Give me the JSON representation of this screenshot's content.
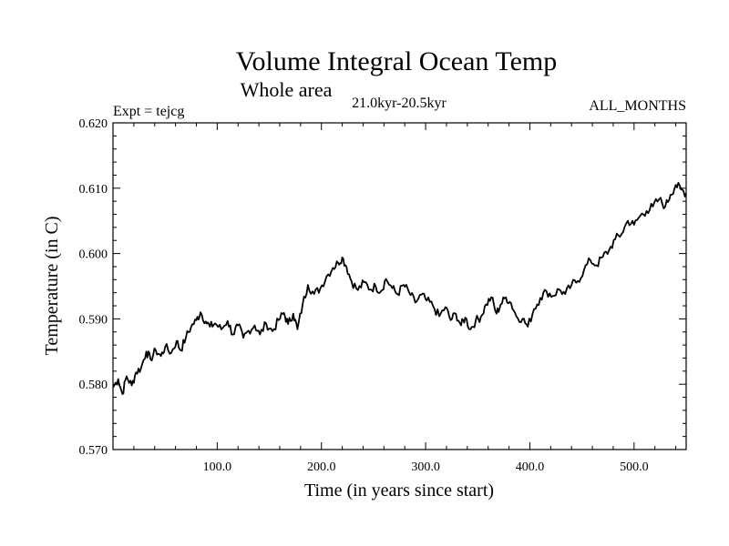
{
  "chart_data": {
    "type": "line",
    "title": "Volume Integral Ocean Temp",
    "subtitle": "Whole area",
    "period": "21.0kyr-20.5kyr",
    "expt": "Expt = tejcg",
    "months": "ALL_MONTHS",
    "xlabel": "Time (in years since start)",
    "ylabel": "Temperature (in C)",
    "xlim": [
      0,
      550
    ],
    "ylim": [
      0.57,
      0.62
    ],
    "xticks": [
      100,
      200,
      300,
      400,
      500
    ],
    "xtick_labels": [
      "100.0",
      "200.0",
      "300.0",
      "400.0",
      "500.0"
    ],
    "yticks": [
      0.57,
      0.58,
      0.59,
      0.6,
      0.61,
      0.62
    ],
    "ytick_labels": [
      "0.570",
      "0.580",
      "0.590",
      "0.600",
      "0.610",
      "0.620"
    ],
    "series": [
      {
        "name": "Volume integral ocean temperature",
        "color": "#000000",
        "x": [
          0,
          5,
          9,
          13,
          18,
          22,
          27,
          32,
          36,
          41,
          46,
          50,
          56,
          61,
          65,
          70,
          75,
          80,
          84,
          89,
          93,
          98,
          104,
          110,
          115,
          120,
          125,
          130,
          136,
          141,
          147,
          153,
          159,
          164,
          168,
          173,
          177,
          182,
          187,
          193,
          199,
          205,
          211,
          216,
          220,
          224,
          229,
          235,
          241,
          247,
          252,
          257,
          262,
          268,
          273,
          279,
          284,
          290,
          296,
          301,
          307,
          313,
          319,
          324,
          329,
          334,
          338,
          343,
          348,
          353,
          358,
          363,
          368,
          372,
          377,
          382,
          387,
          393,
          398,
          404,
          410,
          416,
          422,
          428,
          434,
          440,
          446,
          452,
          458,
          464,
          470,
          476,
          482,
          488,
          494,
          500,
          506,
          512,
          518,
          524,
          530,
          535,
          540,
          545,
          550
        ],
        "values": [
          0.5795,
          0.5808,
          0.5785,
          0.5812,
          0.5798,
          0.5818,
          0.5825,
          0.585,
          0.5838,
          0.5852,
          0.5843,
          0.5857,
          0.5848,
          0.5866,
          0.5852,
          0.5872,
          0.5888,
          0.5898,
          0.591,
          0.5896,
          0.5888,
          0.5893,
          0.5884,
          0.5897,
          0.5876,
          0.589,
          0.5871,
          0.5882,
          0.589,
          0.5876,
          0.5893,
          0.5881,
          0.5898,
          0.5909,
          0.5892,
          0.5908,
          0.5884,
          0.5922,
          0.5952,
          0.5938,
          0.5947,
          0.5965,
          0.5978,
          0.5986,
          0.5994,
          0.598,
          0.5957,
          0.5944,
          0.5956,
          0.5945,
          0.595,
          0.5942,
          0.5961,
          0.5947,
          0.5938,
          0.5952,
          0.5941,
          0.5925,
          0.5937,
          0.5928,
          0.592,
          0.5904,
          0.5918,
          0.5898,
          0.5908,
          0.589,
          0.5902,
          0.5884,
          0.5897,
          0.5903,
          0.5922,
          0.5933,
          0.5908,
          0.5922,
          0.5933,
          0.5924,
          0.5904,
          0.59,
          0.5888,
          0.5915,
          0.5932,
          0.5942,
          0.5935,
          0.5945,
          0.5938,
          0.5952,
          0.5958,
          0.5975,
          0.599,
          0.5982,
          0.5995,
          0.6005,
          0.6022,
          0.603,
          0.605,
          0.6044,
          0.6058,
          0.6065,
          0.6072,
          0.6083,
          0.6072,
          0.609,
          0.6105,
          0.6098,
          0.6092
        ]
      }
    ]
  }
}
